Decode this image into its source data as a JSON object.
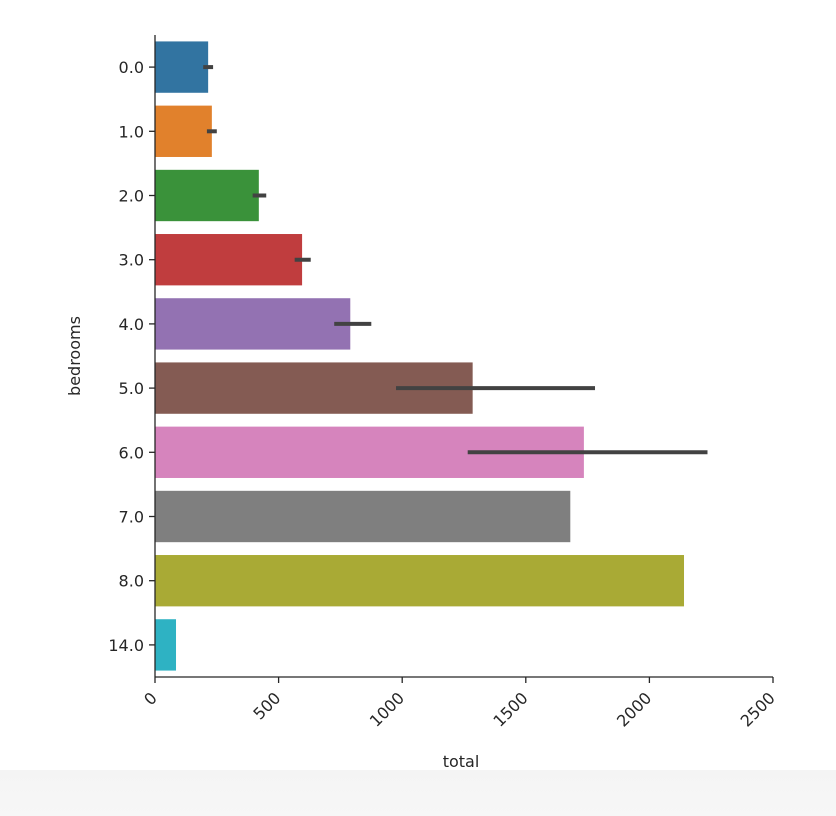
{
  "chart_data": {
    "type": "bar",
    "orientation": "horizontal",
    "ylabel": "bedrooms",
    "xlabel": "total",
    "xlim": [
      0,
      2500
    ],
    "xticks": [
      "0",
      "500",
      "1000",
      "1500",
      "2000",
      "2500"
    ],
    "grid": false,
    "categories": [
      "0.0",
      "1.0",
      "2.0",
      "3.0",
      "4.0",
      "5.0",
      "6.0",
      "7.0",
      "8.0",
      "14.0"
    ],
    "values": [
      215,
      230,
      420,
      595,
      790,
      1285,
      1735,
      1680,
      2140,
      85
    ],
    "error_bars": [
      [
        195,
        235
      ],
      [
        210,
        250
      ],
      [
        395,
        450
      ],
      [
        565,
        630
      ],
      [
        725,
        875
      ],
      [
        975,
        1780
      ],
      [
        1265,
        2235
      ],
      null,
      null,
      null
    ],
    "colors": [
      "#3274a1",
      "#e1812c",
      "#3a923a",
      "#c03d3e",
      "#9372b2",
      "#845b53",
      "#d684bd",
      "#7f7f7f",
      "#a9aa35",
      "#2eb2c3"
    ],
    "error_color": "#424242"
  }
}
